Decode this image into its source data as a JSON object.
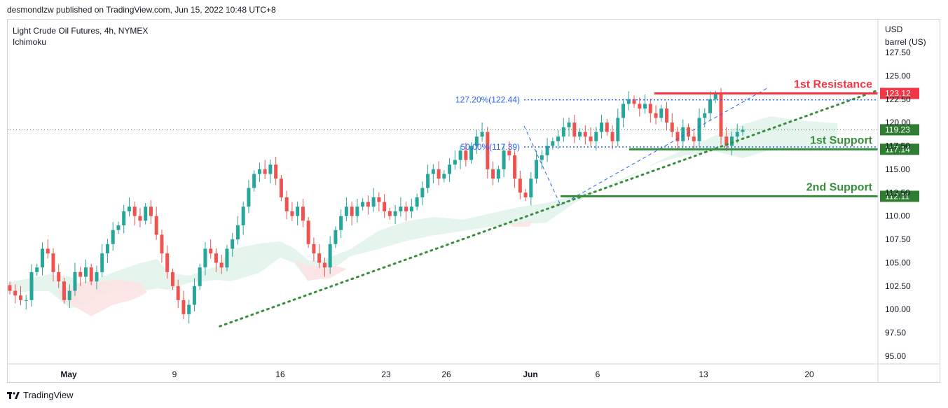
{
  "header": {
    "published_text": "desmondlzw published on TradingView.com, Jun 15, 2022 10:48 UTC+8"
  },
  "legend": {
    "symbol_line": "Light Crude Oil Futures, 4h, NYMEX",
    "indicator": "Ichimoku"
  },
  "axis": {
    "unit_line1": "USD",
    "unit_line2": "barrel (US)"
  },
  "footer": {
    "brand": "TradingView",
    "logo_icon": "tradingview-logo-icon"
  },
  "chart_data": {
    "type": "candlestick",
    "title": "Light Crude Oil Futures, 4h, NYMEX",
    "ylim": [
      95.0,
      127.5
    ],
    "y_ticks": [
      "127.50",
      "125.00",
      "122.50",
      "120.00",
      "117.50",
      "115.00",
      "112.50",
      "110.00",
      "107.50",
      "105.00",
      "102.50",
      "100.00",
      "97.50",
      "95.00"
    ],
    "x_ticks": [
      {
        "label": "May",
        "bold": true
      },
      {
        "label": "9",
        "bold": false
      },
      {
        "label": "16",
        "bold": false
      },
      {
        "label": "23",
        "bold": false
      },
      {
        "label": "26",
        "bold": false
      },
      {
        "label": "Jun",
        "bold": true
      },
      {
        "label": "6",
        "bold": false
      },
      {
        "label": "13",
        "bold": false
      },
      {
        "label": "20",
        "bold": false
      }
    ],
    "price_labels": [
      {
        "value": 123.12,
        "text": "123.12",
        "color": "#f23645"
      },
      {
        "value": 119.23,
        "text": "119.23",
        "color": "#2e7d32"
      },
      {
        "value": 117.14,
        "text": "117.14",
        "color": "#2e7d32"
      },
      {
        "value": 112.11,
        "text": "112.11",
        "color": "#2e7d32"
      }
    ],
    "levels": [
      {
        "name": "1st Resistance",
        "value": 123.12,
        "color": "#f23645"
      },
      {
        "name": "1st Support",
        "value": 117.14,
        "color": "#388e3c"
      },
      {
        "name": "2nd Support",
        "value": 112.11,
        "color": "#388e3c"
      }
    ],
    "fib_levels": [
      {
        "text": "127.20%(122.44)",
        "value": 122.44
      },
      {
        "text": "50.00%(117.39)",
        "value": 117.39
      }
    ],
    "current_price": 119.23,
    "trendline": {
      "from": {
        "x_day": 11.5,
        "y": 98.2
      },
      "to": {
        "x_day": 46.5,
        "y": 123.5
      }
    },
    "colors": {
      "up": "#26a69a",
      "down": "#ef5350",
      "cloud_up": "#e0f2e9",
      "cloud_down": "#fde3e3",
      "fib": "#2962ff",
      "trend": "#388e3c"
    },
    "candles_close": [
      102.0,
      101.5,
      101.0,
      101.0,
      104.0,
      104.5,
      106.5,
      106.0,
      104.0,
      103.0,
      101.0,
      102.0,
      104.0,
      103.5,
      104.5,
      103.0,
      104.0,
      106.0,
      107.0,
      108.5,
      109.0,
      110.5,
      111.0,
      110.0,
      109.5,
      111.0,
      110.0,
      108.0,
      106.0,
      104.0,
      102.5,
      101.0,
      99.5,
      100.5,
      102.5,
      104.5,
      106.5,
      106.0,
      105.0,
      104.5,
      106.5,
      107.5,
      109.0,
      111.0,
      113.0,
      114.5,
      115.0,
      114.5,
      115.5,
      114.0,
      112.0,
      110.5,
      110.0,
      111.0,
      109.5,
      107.0,
      106.0,
      105.0,
      104.5,
      107.0,
      108.5,
      110.0,
      111.0,
      110.0,
      111.0,
      111.5,
      111.0,
      112.0,
      111.5,
      110.5,
      110.0,
      110.5,
      111.0,
      110.5,
      111.0,
      112.0,
      113.0,
      114.5,
      115.0,
      114.0,
      114.5,
      115.5,
      116.0,
      117.0,
      116.0,
      117.5,
      118.5,
      119.0,
      115.0,
      114.0,
      115.0,
      117.0,
      116.5,
      114.0,
      112.5,
      112.0,
      114.0,
      116.0,
      116.5,
      117.5,
      118.0,
      118.5,
      119.5,
      120.0,
      118.5,
      119.0,
      118.5,
      118.0,
      119.0,
      120.0,
      119.0,
      118.0,
      120.5,
      122.0,
      122.5,
      122.0,
      121.5,
      122.0,
      121.0,
      120.5,
      121.5,
      120.0,
      119.0,
      118.0,
      119.5,
      118.5,
      118.0,
      120.5,
      121.0,
      122.5,
      123.0,
      118.5,
      117.5,
      118.5,
      119.0,
      119.23
    ]
  }
}
